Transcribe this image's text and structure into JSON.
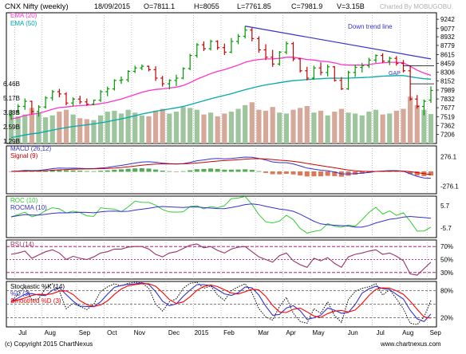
{
  "header": {
    "symbol": "CNX Nifty (weekly)",
    "date": "18/09/2015",
    "open": "O=7811.1",
    "high": "H=8055",
    "low": "L=7761.85",
    "close": "C=7981.9",
    "volume": "V=3.15B",
    "watermark": "Charted By MOBUGOBU"
  },
  "footer": {
    "copyright": "(c) Copyright 2015 ChartNexus",
    "url": "www.chartnexus.com"
  },
  "colors": {
    "up": "#009900",
    "down": "#cc0000",
    "ema20": "#ff33cc",
    "ema50": "#00aaaa",
    "trendline": "#3333cc",
    "vol_up": "#9ec59e",
    "vol_down": "#d5a89a",
    "macd": "#3333cc",
    "signal": "#cc0000",
    "roc": "#33cc33",
    "rocma": "#3333cc",
    "rsi": "#993366",
    "stoch_k": "#000000",
    "stoch_pd": "#3333cc",
    "stoch_sd": "#ff0000"
  },
  "chart_data": [
    {
      "type": "candlestick",
      "title": "CNX Nifty (weekly)",
      "legend": [
        "EMA (20)",
        "EMA (50)"
      ],
      "legend_position": "top-left",
      "ylim": [
        7100,
        9300
      ],
      "price_ticks": [
        "9242",
        "9077",
        "8932",
        "8779",
        "8615",
        "8459",
        "8306",
        "8152",
        "7989",
        "7832",
        "7677",
        "7519",
        "7362",
        "7206"
      ],
      "volume_ticks": [
        "6.46B",
        "5.17B",
        "3.88B",
        "2.59B",
        "1.29B"
      ],
      "x_labels": [
        "Jul",
        "Aug",
        "Sep",
        "Oct",
        "Nov",
        "Dec",
        "2015",
        "Feb",
        "Mar",
        "Apr",
        "May",
        "Jun",
        "Jul",
        "Aug",
        "Sep"
      ],
      "annotations": [
        "Down trend line",
        "GAP"
      ],
      "ohlc": [
        [
          7540,
          7640,
          7460,
          7610
        ],
        [
          7610,
          7740,
          7560,
          7700
        ],
        [
          7700,
          7840,
          7640,
          7790
        ],
        [
          7790,
          7800,
          7560,
          7610
        ],
        [
          7610,
          7720,
          7520,
          7690
        ],
        [
          7690,
          7880,
          7660,
          7850
        ],
        [
          7850,
          7990,
          7800,
          7960
        ],
        [
          7960,
          8010,
          7860,
          7920
        ],
        [
          7920,
          7950,
          7720,
          7760
        ],
        [
          7760,
          7860,
          7700,
          7830
        ],
        [
          7830,
          7890,
          7740,
          7780
        ],
        [
          7780,
          7840,
          7710,
          7740
        ],
        [
          7740,
          7820,
          7720,
          7810
        ],
        [
          7810,
          7990,
          7780,
          7960
        ],
        [
          7960,
          8050,
          7880,
          8010
        ],
        [
          8010,
          8180,
          7980,
          8160
        ],
        [
          8160,
          8230,
          8100,
          8170
        ],
        [
          8170,
          8340,
          8130,
          8320
        ],
        [
          8320,
          8420,
          8290,
          8380
        ],
        [
          8380,
          8440,
          8340,
          8410
        ],
        [
          8410,
          8420,
          8320,
          8350
        ],
        [
          8350,
          8410,
          8150,
          8200
        ],
        [
          8200,
          8240,
          8050,
          8100
        ],
        [
          8100,
          8180,
          8000,
          8160
        ],
        [
          8160,
          8260,
          8060,
          8200
        ],
        [
          8200,
          8390,
          8180,
          8370
        ],
        [
          8370,
          8630,
          8340,
          8600
        ],
        [
          8600,
          8820,
          8560,
          8790
        ],
        [
          8790,
          8850,
          8680,
          8720
        ],
        [
          8720,
          8880,
          8690,
          8850
        ],
        [
          8850,
          8870,
          8700,
          8740
        ],
        [
          8740,
          8810,
          8610,
          8660
        ],
        [
          8660,
          8910,
          8640,
          8850
        ],
        [
          8850,
          8980,
          8800,
          8940
        ],
        [
          8940,
          9120,
          8900,
          9050
        ],
        [
          9050,
          9090,
          8850,
          8900
        ],
        [
          8900,
          8940,
          8650,
          8700
        ],
        [
          8700,
          8800,
          8520,
          8570
        ],
        [
          8570,
          8700,
          8400,
          8450
        ],
        [
          8450,
          8680,
          8420,
          8660
        ],
        [
          8660,
          8850,
          8620,
          8810
        ],
        [
          8810,
          8840,
          8500,
          8540
        ],
        [
          8540,
          8560,
          8300,
          8330
        ],
        [
          8330,
          8400,
          8160,
          8200
        ],
        [
          8200,
          8420,
          8170,
          8380
        ],
        [
          8380,
          8480,
          8250,
          8300
        ],
        [
          8300,
          8440,
          8230,
          8400
        ],
        [
          8400,
          8410,
          8140,
          8160
        ],
        [
          8160,
          8220,
          7990,
          8010
        ],
        [
          8010,
          8330,
          7990,
          8300
        ],
        [
          8300,
          8440,
          8220,
          8390
        ],
        [
          8390,
          8470,
          8300,
          8420
        ],
        [
          8420,
          8560,
          8380,
          8520
        ],
        [
          8520,
          8620,
          8470,
          8600
        ],
        [
          8600,
          8640,
          8470,
          8500
        ],
        [
          8500,
          8580,
          8430,
          8550
        ],
        [
          8550,
          8590,
          8420,
          8460
        ],
        [
          8460,
          8520,
          8300,
          8330
        ],
        [
          8330,
          8420,
          7800,
          7830
        ],
        [
          7830,
          7900,
          7660,
          7700
        ],
        [
          7700,
          7820,
          7540,
          7790
        ],
        [
          7811.1,
          8055,
          7761.85,
          7981.9
        ]
      ],
      "ema20": [
        7480,
        7500,
        7540,
        7560,
        7580,
        7610,
        7650,
        7680,
        7690,
        7705,
        7715,
        7720,
        7730,
        7750,
        7770,
        7800,
        7830,
        7870,
        7910,
        7950,
        7980,
        8000,
        8010,
        8025,
        8040,
        8070,
        8120,
        8180,
        8230,
        8280,
        8320,
        8350,
        8390,
        8430,
        8480,
        8510,
        8530,
        8540,
        8540,
        8550,
        8570,
        8570,
        8550,
        8530,
        8520,
        8500,
        8490,
        8470,
        8440,
        8430,
        8430,
        8430,
        8440,
        8460,
        8470,
        8480,
        8480,
        8470,
        8410,
        8340,
        8290,
        8250
      ],
      "ema50": [
        7150,
        7170,
        7195,
        7215,
        7230,
        7255,
        7280,
        7305,
        7325,
        7345,
        7360,
        7375,
        7390,
        7410,
        7430,
        7455,
        7480,
        7505,
        7535,
        7565,
        7590,
        7615,
        7635,
        7655,
        7675,
        7700,
        7730,
        7765,
        7800,
        7835,
        7865,
        7895,
        7925,
        7960,
        7995,
        8025,
        8055,
        8080,
        8100,
        8120,
        8140,
        8155,
        8165,
        8175,
        8185,
        8190,
        8198,
        8200,
        8198,
        8200,
        8205,
        8210,
        8215,
        8225,
        8235,
        8240,
        8245,
        8245,
        8225,
        8205,
        8190,
        8182
      ],
      "volume": [
        3.2,
        2.9,
        3.1,
        3.8,
        3.3,
        2.8,
        3.0,
        3.4,
        3.6,
        3.1,
        2.7,
        2.6,
        2.5,
        3.0,
        3.4,
        3.5,
        3.2,
        3.6,
        3.3,
        3.0,
        2.9,
        3.5,
        3.7,
        3.2,
        3.4,
        3.9,
        3.8,
        3.6,
        3.1,
        3.3,
        2.9,
        3.2,
        3.4,
        3.7,
        4.1,
        4.4,
        3.6,
        3.5,
        3.9,
        3.3,
        3.2,
        3.6,
        3.8,
        4.0,
        3.3,
        3.5,
        3.0,
        3.4,
        3.7,
        3.3,
        3.2,
        3.0,
        3.4,
        3.6,
        3.1,
        3.2,
        3.5,
        3.7,
        5.0,
        4.1,
        3.6,
        3.15
      ]
    },
    {
      "type": "histogram",
      "title": "MACD (26,12)",
      "legend": [
        "MACD (26,12)",
        "Signal (9)"
      ],
      "y_ticks": [
        "276.1",
        "0",
        "-276.1"
      ],
      "ylim": [
        -400,
        400
      ]
    },
    {
      "type": "line",
      "title": "ROC (10)",
      "legend": [
        "ROC (10)",
        "ROCMA (10)"
      ],
      "y_ticks": [
        "5.7",
        "0",
        "-5.7"
      ],
      "ylim": [
        -10,
        10
      ]
    },
    {
      "type": "line",
      "title": "RSI (14)",
      "legend": [
        "RSI (14)"
      ],
      "y_ticks": [
        "70%",
        "50%",
        "30%"
      ],
      "ylim": [
        20,
        80
      ],
      "values": [
        58,
        60,
        63,
        52,
        57,
        62,
        65,
        60,
        50,
        55,
        52,
        50,
        54,
        60,
        62,
        66,
        66,
        69,
        70,
        70,
        66,
        58,
        54,
        60,
        62,
        67,
        72,
        74,
        68,
        70,
        64,
        60,
        66,
        69,
        70,
        62,
        54,
        50,
        46,
        56,
        60,
        48,
        42,
        38,
        52,
        48,
        53,
        44,
        38,
        54,
        58,
        60,
        63,
        65,
        58,
        60,
        55,
        48,
        28,
        26,
        36,
        46
      ]
    },
    {
      "type": "line",
      "title": "Stochastic %K (14)",
      "legend": [
        "Stochastic %K (14)",
        "%D (3)",
        "Smoothed %D (3)"
      ],
      "y_ticks": [
        "80%",
        "20%"
      ],
      "ylim": [
        0,
        100
      ],
      "k": [
        55,
        72,
        88,
        60,
        62,
        85,
        95,
        78,
        40,
        52,
        45,
        38,
        50,
        78,
        88,
        95,
        90,
        96,
        98,
        97,
        85,
        50,
        35,
        55,
        62,
        85,
        96,
        98,
        85,
        90,
        70,
        58,
        80,
        88,
        95,
        75,
        40,
        22,
        15,
        45,
        65,
        30,
        12,
        8,
        40,
        30,
        55,
        25,
        10,
        60,
        78,
        85,
        88,
        95,
        70,
        82,
        62,
        40,
        8,
        5,
        22,
        58
      ]
    }
  ]
}
